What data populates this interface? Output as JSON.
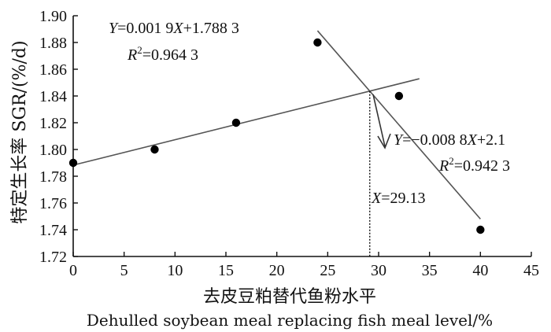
{
  "chart_data": {
    "type": "scatter",
    "x": [
      0,
      8,
      16,
      24,
      32,
      40
    ],
    "y": [
      1.79,
      1.8,
      1.82,
      1.88,
      1.84,
      1.74
    ],
    "xlim": [
      0,
      45
    ],
    "ylim": [
      1.72,
      1.9
    ],
    "xticks": [
      "0",
      "5",
      "10",
      "15",
      "20",
      "25",
      "30",
      "35",
      "40",
      "45"
    ],
    "yticks": [
      "1.72",
      "1.74",
      "1.76",
      "1.78",
      "1.80",
      "1.82",
      "1.84",
      "1.86",
      "1.88",
      "1.90"
    ],
    "xlabel": "去皮豆粕替代鱼粉水平",
    "xlabel_en": "Dehulled soybean meal replacing fish meal  level/%",
    "ylabel": "特定生长率  SGR/(%/d)",
    "grid": false,
    "line_color": "#555555",
    "point_color": "#000000",
    "lines": [
      {
        "slope": 0.0019,
        "intercept": 1.7883,
        "x_range": [
          0,
          34
        ]
      },
      {
        "slope": -0.0088,
        "intercept": 2.1,
        "x_range": [
          24,
          40
        ]
      }
    ],
    "annotations": {
      "eq1_y": "Y",
      "eq1_eq": "=0.001 9",
      "eq1_x": "X",
      "eq1_rest": "+1.788 3",
      "r2_1_r": "R",
      "r2_1_sup": "2",
      "r2_1_val": "=0.964 3",
      "eq2_y": "Y",
      "eq2_eq": "=−0.008 8",
      "eq2_x": "X",
      "eq2_rest": "+2.1",
      "r2_2_r": "R",
      "r2_2_sup": "2",
      "r2_2_val": "=0.942 3",
      "xint_x": "X",
      "xint_val": "=29.13"
    },
    "intersection_x": 29.13
  }
}
